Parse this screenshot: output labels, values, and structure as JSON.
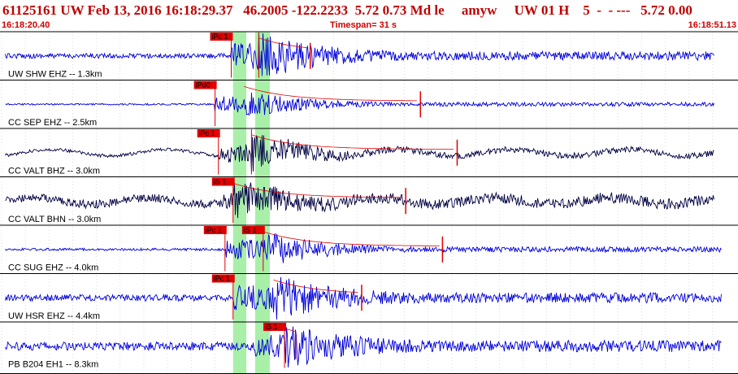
{
  "header": {
    "title": "61125161 UW Feb 13, 2016 16:18:29.37   46.2005 -122.2233  5.72 0.73 Md le     amyw     UW 01 H    5  -  - ---   5.72 0.00",
    "start_time": "16:18:20.40",
    "timespan": "Timespan=  31 s",
    "end_time": "16:18:51.13"
  },
  "colors": {
    "trace_blue": "#0000dd",
    "trace_black": "#000044",
    "pick_red": "#e00000",
    "window_green": "#a8f0a8",
    "header_red": "#c00000"
  },
  "traces": [
    {
      "label": "UW SHW EHZ -- 1.3km",
      "color": "blue",
      "picks": [
        {
          "label": "iPc 1",
          "t": 0.3125
        },
        {
          "label": "",
          "t": 0.35
        }
      ],
      "amp": 30,
      "noise": 3,
      "onset": 0.3125,
      "s": 0.35,
      "end": 0.97,
      "tail": 0.42
    },
    {
      "label": "CC SEP EHZ -- 2.5km",
      "color": "blue",
      "picks": [
        {
          "label": "iPd0",
          "t": 0.2905
        }
      ],
      "amp": 18,
      "noise": 1,
      "onset": 0.29,
      "s": 0.33,
      "end": 0.97,
      "tail": 0.57
    },
    {
      "label": "CC VALT BHZ -- 3.0km",
      "color": "black",
      "picks": [
        {
          "label": "iPc 1",
          "t": 0.295
        },
        {
          "label": "",
          "t": 0.34
        }
      ],
      "amp": 22,
      "noise": 2,
      "onset": 0.295,
      "s": 0.34,
      "end": 0.97,
      "tail": 0.62
    },
    {
      "label": "CC VALT BHN -- 3.0km",
      "color": "black",
      "picks": [
        {
          "label": "iS 1",
          "t": 0.315
        }
      ],
      "amp": 20,
      "noise": 5,
      "onset": 0.3,
      "s": 0.315,
      "end": 0.97,
      "tail": 0.55
    },
    {
      "label": "CC SUG EHZ -- 4.0km",
      "color": "blue",
      "picks": [
        {
          "label": "iPc 1",
          "t": 0.304
        },
        {
          "label": "iS 1",
          "t": 0.356
        }
      ],
      "amp": 22,
      "noise": 1.5,
      "onset": 0.304,
      "s": 0.356,
      "end": 0.98,
      "tail": 0.6
    },
    {
      "label": "UW HSR EHZ -- 4.4km",
      "color": "blue",
      "picks": [
        {
          "label": "iPc 1",
          "t": 0.315
        }
      ],
      "amp": 28,
      "noise": 4,
      "onset": 0.315,
      "s": 0.37,
      "end": 0.98,
      "tail": 0.49
    },
    {
      "label": "PB B204 EH1 -- 8.3km",
      "color": "blue",
      "picks": [
        {
          "label": "iS 1",
          "t": 0.385
        }
      ],
      "amp": 26,
      "noise": 5,
      "onset": 0.345,
      "s": 0.385,
      "end": 0.98,
      "tail": 0.4
    }
  ]
}
